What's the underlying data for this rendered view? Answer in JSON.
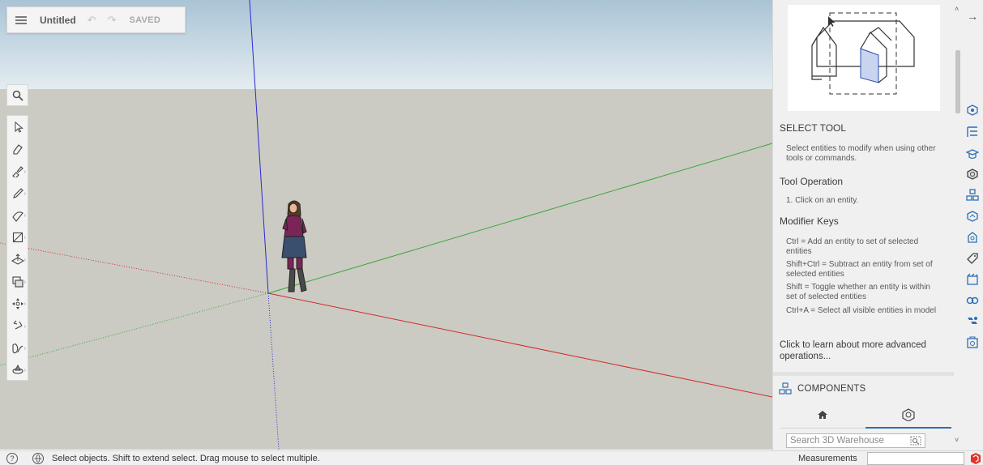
{
  "app": {
    "doc_title": "Untitled",
    "save_status": "SAVED"
  },
  "panel": {
    "tool_title": "SELECT TOOL",
    "tool_description": "Select entities to modify when using other tools or commands.",
    "operation_title": "Tool Operation",
    "operation_steps": "1. Click on an entity.",
    "modifier_title": "Modifier Keys",
    "modifiers": [
      "Ctrl = Add an entity to set of selected entities",
      "Shift+Ctrl = Subtract an entity from set of selected entities",
      "Shift = Toggle whether an entity is within set of selected entities",
      "Ctrl+A = Select all visible entities in model"
    ],
    "advanced_link": "Click to learn about more advanced operations...",
    "components_label": "COMPONENTS",
    "search_placeholder": "Search 3D Warehouse"
  },
  "toolbar": {
    "tools": [
      "select-tool",
      "eraser-tool",
      "paint-bucket-tool",
      "pencil-tool",
      "arc-tool",
      "rectangle-tool",
      "push-pull-tool",
      "offset-tool",
      "move-tool",
      "rotate-tool",
      "tape-measure-tool",
      "orbit-tool"
    ]
  },
  "status_bar": {
    "message": "Select objects. Shift to extend select. Drag mouse to select multiple.",
    "measurements_label": "Measurements",
    "measurements_value": ""
  },
  "colors": {
    "sky_top": "#a9c4d6",
    "ground": "#cbcbc4",
    "axis_red": "#d12a2a",
    "axis_green": "#3aa63a",
    "axis_blue": "#2a2ad1",
    "accent": "#2f6fb5"
  }
}
